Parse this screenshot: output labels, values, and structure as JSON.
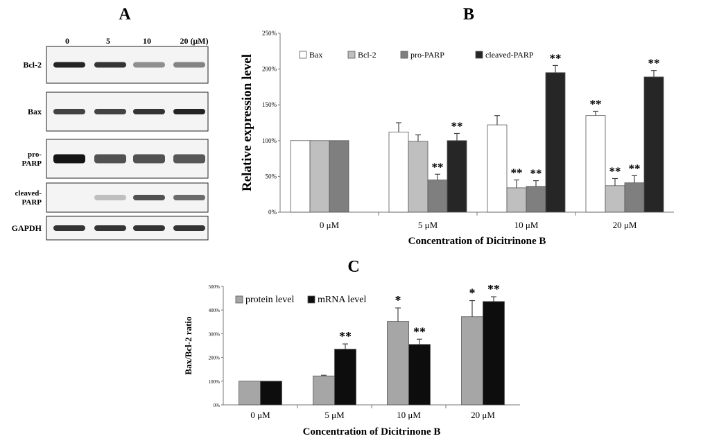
{
  "panels": {
    "a": "A",
    "b": "B",
    "c": "C"
  },
  "western_blot": {
    "concentrations": [
      "0",
      "5",
      "10",
      "20 (μM)"
    ],
    "bands": [
      {
        "label": "Bcl-2",
        "intensity": [
          0.95,
          0.9,
          0.55,
          0.6
        ]
      },
      {
        "label": "Bax",
        "intensity": [
          0.85,
          0.85,
          0.9,
          0.95
        ]
      },
      {
        "label": "pro-PARP",
        "intensity": [
          1.0,
          0.8,
          0.8,
          0.78
        ]
      },
      {
        "label": "cleaved-PARP",
        "intensity": [
          0.0,
          0.3,
          0.8,
          0.7
        ]
      },
      {
        "label": "GAPDH",
        "intensity": [
          0.9,
          0.9,
          0.9,
          0.9
        ]
      }
    ]
  },
  "chart_data": [
    {
      "id": "B",
      "type": "bar",
      "title": "B",
      "xlabel": "Concentration of Dicitrinone B",
      "ylabel": "Relative expression level",
      "categories": [
        "0 μM",
        "5 μM",
        "10 μM",
        "20 μM"
      ],
      "ylim": [
        0,
        250
      ],
      "yticks": [
        0,
        50,
        100,
        150,
        200,
        250
      ],
      "ytick_labels": [
        "0%",
        "50%",
        "100%",
        "150%",
        "200%",
        "250%"
      ],
      "grid": false,
      "legend_position": "top",
      "series": [
        {
          "name": "Bax",
          "color": "#ffffff",
          "values": [
            100,
            112,
            122,
            135
          ],
          "errors": [
            0,
            13,
            13,
            6
          ],
          "marks": [
            "",
            "",
            "",
            "**"
          ]
        },
        {
          "name": "Bcl-2",
          "color": "#bfbfbf",
          "values": [
            100,
            99,
            34,
            37
          ],
          "errors": [
            0,
            9,
            11,
            10
          ],
          "marks": [
            "",
            "",
            "**",
            "**"
          ]
        },
        {
          "name": "pro-PARP",
          "color": "#7f7f7f",
          "values": [
            100,
            45,
            36,
            41
          ],
          "errors": [
            0,
            8,
            8,
            10
          ],
          "marks": [
            "",
            "**",
            "**",
            "**"
          ]
        },
        {
          "name": "cleaved-PARP",
          "color": "#262626",
          "values": [
            0,
            100,
            195,
            189
          ],
          "errors": [
            0,
            10,
            10,
            9
          ],
          "marks": [
            "",
            "**",
            "**",
            "**"
          ]
        }
      ]
    },
    {
      "id": "C",
      "type": "bar",
      "title": "C",
      "xlabel": "Concentration of Dicitrinone B",
      "ylabel": "Bax/Bcl-2 ratio",
      "categories": [
        "0 μM",
        "5 μM",
        "10 μM",
        "20 μM"
      ],
      "ylim": [
        0,
        500
      ],
      "yticks": [
        0,
        100,
        200,
        300,
        400,
        500
      ],
      "ytick_labels": [
        "0%",
        "100%",
        "200%",
        "300%",
        "400%",
        "500%"
      ],
      "grid": false,
      "legend_position": "top-left",
      "series": [
        {
          "name": "protein level",
          "color": "#a6a6a6",
          "values": [
            100,
            122,
            352,
            372
          ],
          "errors": [
            0,
            3,
            57,
            68
          ],
          "marks": [
            "",
            "",
            "*",
            "*"
          ]
        },
        {
          "name": "mRNA level",
          "color": "#0d0d0d",
          "values": [
            100,
            235,
            255,
            436
          ],
          "errors": [
            0,
            22,
            22,
            20
          ],
          "marks": [
            "",
            "**",
            "**",
            "**"
          ]
        }
      ]
    }
  ]
}
